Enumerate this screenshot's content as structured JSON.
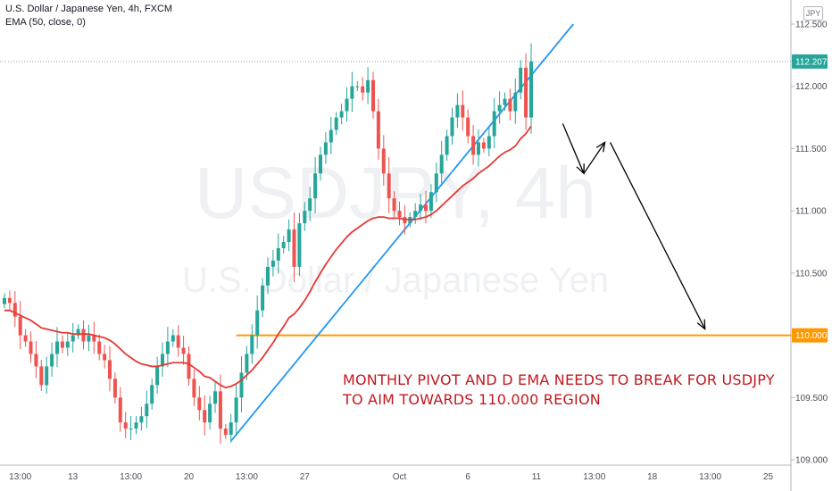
{
  "header": {
    "symbol_line": "U.S. Dollar / Japanese Yen, 4h, FXCM",
    "indicator_line": "EMA (50, close, 0)",
    "currency_badge": "JPY"
  },
  "watermark": {
    "ticker": "USDJPY, 4h",
    "name": "U.S. Dollar / Japanese Yen"
  },
  "annotation": {
    "line1": "MONTHLY PIVOT AND D EMA NEEDS TO BREAK FOR USDJPY",
    "line2": "TO AIM TOWARDS 110.000 REGION"
  },
  "colors": {
    "up": "#26a69a",
    "down": "#ef5350",
    "ema": "#e53935",
    "trendline": "#2196f3",
    "pivot": "#ff9800",
    "arrow": "#000000",
    "text_annotation": "#c2181f"
  },
  "chart_data": {
    "type": "candlestick",
    "title": "U.S. Dollar / Japanese Yen, 4h, FXCM",
    "indicator": "EMA (50, close, 0)",
    "timeframe": "4h",
    "ylim": [
      109.0,
      112.55
    ],
    "y_ticks": [
      "112.500",
      "112.000",
      "111.500",
      "111.000",
      "110.500",
      "110.000",
      "109.500",
      "109.000"
    ],
    "x_ticks": [
      "13:00",
      "13",
      "13:00",
      "20",
      "13:00",
      "27",
      "Oct",
      "6",
      "11",
      "13:00",
      "18",
      "13:00",
      "25"
    ],
    "x_tick_bar_index": [
      3,
      13,
      24,
      35,
      46,
      57,
      75,
      88,
      101,
      112,
      123,
      134,
      145
    ],
    "last_price": "112.207",
    "pivot_label": "110.000",
    "pivot_level": 110.0,
    "closes": [
      110.3,
      110.26,
      110.15,
      110.0,
      109.95,
      109.85,
      109.75,
      109.6,
      109.75,
      109.85,
      109.95,
      109.9,
      109.95,
      110.0,
      110.05,
      109.95,
      110.0,
      109.95,
      109.85,
      109.8,
      109.65,
      109.5,
      109.3,
      109.25,
      109.25,
      109.3,
      109.35,
      109.45,
      109.6,
      109.75,
      109.85,
      109.95,
      110.0,
      109.9,
      109.85,
      109.65,
      109.5,
      109.4,
      109.3,
      109.45,
      109.55,
      109.25,
      109.2,
      109.3,
      109.5,
      109.7,
      109.85,
      110.0,
      110.2,
      110.4,
      110.55,
      110.6,
      110.7,
      110.75,
      110.85,
      110.55,
      110.9,
      111.0,
      111.1,
      111.3,
      111.45,
      111.55,
      111.65,
      111.75,
      111.8,
      111.9,
      112.0,
      112.0,
      111.95,
      112.05,
      111.8,
      111.5,
      111.3,
      111.1,
      111.0,
      110.95,
      110.9,
      110.95,
      111.0,
      111.05,
      111.0,
      111.15,
      111.3,
      111.45,
      111.6,
      111.75,
      111.85,
      111.75,
      111.6,
      111.45,
      111.55,
      111.5,
      111.6,
      111.8,
      111.85,
      111.9,
      111.8,
      111.95,
      112.15,
      111.75,
      112.2
    ],
    "ema": [
      110.2,
      110.2,
      110.18,
      110.16,
      110.14,
      110.12,
      110.09,
      110.06,
      110.05,
      110.04,
      110.03,
      110.02,
      110.02,
      110.01,
      110.01,
      110.01,
      110.01,
      110.0,
      109.99,
      109.98,
      109.96,
      109.93,
      109.89,
      109.85,
      109.82,
      109.79,
      109.77,
      109.76,
      109.75,
      109.75,
      109.76,
      109.77,
      109.78,
      109.78,
      109.78,
      109.77,
      109.74,
      109.71,
      109.67,
      109.66,
      109.63,
      109.6,
      109.58,
      109.59,
      109.61,
      109.64,
      109.68,
      109.72,
      109.77,
      109.82,
      109.88,
      109.94,
      110.01,
      110.07,
      110.14,
      110.17,
      110.22,
      110.28,
      110.35,
      110.43,
      110.5,
      110.57,
      110.63,
      110.69,
      110.74,
      110.79,
      110.83,
      110.86,
      110.89,
      110.92,
      110.94,
      110.95,
      110.95,
      110.94,
      110.94,
      110.94,
      110.93,
      110.93,
      110.93,
      110.94,
      110.95,
      110.97,
      111.0,
      111.04,
      111.08,
      111.12,
      111.16,
      111.2,
      111.23,
      111.26,
      111.3,
      111.33,
      111.36,
      111.4,
      111.44,
      111.47,
      111.49,
      111.52,
      111.58,
      111.62,
      111.68
    ],
    "trendline_value_at_index": [
      [
        43,
        109.15
      ],
      [
        108,
        112.5
      ]
    ],
    "arrows": [
      {
        "from": [
          106,
          111.7
        ],
        "to": [
          110,
          111.3
        ],
        "label": ""
      },
      {
        "from": [
          110,
          111.3
        ],
        "to": [
          114,
          111.55
        ],
        "label": ""
      },
      {
        "from": [
          115,
          111.55
        ],
        "to": [
          133,
          110.05
        ],
        "label": ""
      }
    ],
    "grid": true,
    "legend": "none"
  }
}
